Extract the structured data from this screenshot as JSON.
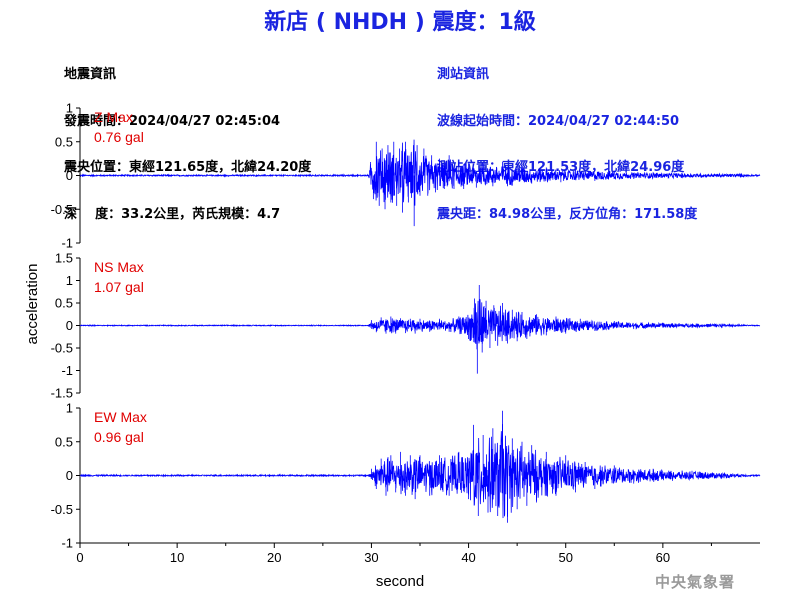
{
  "title": "新店 ( NHDH ) 震度：1級",
  "earthquake_info": {
    "heading": "地震資訊",
    "origin_time": "發震時間：2024/04/27 02:45:04",
    "epicenter": "震央位置：東經121.65度，北緯24.20度",
    "depth_magnitude": "深    度：33.2公里，芮氏規模：4.7"
  },
  "station_info": {
    "heading": "測站資訊",
    "wave_start": "波線起始時間：2024/04/27 02:44:50",
    "location": "測站位置：東經121.53度，北緯24.96度",
    "distance": "震央距：84.98公里，反方位角：171.58度"
  },
  "watermark": "中央氣象署",
  "colors": {
    "title": "#1a24e0",
    "trace": "#0000ff",
    "max_label": "#e00000"
  },
  "chart_data": {
    "type": "line",
    "xlabel": "second",
    "ylabel": "acceleration",
    "xlim": [
      0,
      70
    ],
    "xticks": [
      "0",
      "10",
      "20",
      "30",
      "40",
      "50",
      "60"
    ],
    "panels": [
      {
        "name": "Z",
        "max_label": "Z Max",
        "max_value": "0.76 gal",
        "ylim": [
          -1,
          1
        ],
        "yticks": [
          "1",
          "0.5",
          "0",
          "-0.5",
          "-1"
        ],
        "series": [
          {
            "values": [
              [
                0,
                0
              ],
              [
                29.7,
                0
              ],
              [
                29.9,
                0.2
              ],
              [
                30.2,
                -0.35
              ],
              [
                30.5,
                0.5
              ],
              [
                30.8,
                -0.45
              ],
              [
                31.1,
                0.4
              ],
              [
                31.4,
                -0.5
              ],
              [
                31.7,
                0.45
              ],
              [
                32.0,
                -0.4
              ],
              [
                32.3,
                0.5
              ],
              [
                32.6,
                -0.45
              ],
              [
                32.9,
                0.4
              ],
              [
                33.2,
                -0.55
              ],
              [
                33.5,
                0.5
              ],
              [
                33.8,
                -0.4
              ],
              [
                34.1,
                0.35
              ],
              [
                34.4,
                -0.75
              ],
              [
                34.7,
                0.45
              ],
              [
                35.0,
                -0.3
              ],
              [
                35.4,
                0.4
              ],
              [
                35.8,
                -0.3
              ],
              [
                36.2,
                0.3
              ],
              [
                36.6,
                -0.25
              ],
              [
                37.0,
                0.25
              ],
              [
                37.5,
                -0.2
              ],
              [
                38.0,
                0.3
              ],
              [
                38.5,
                -0.2
              ],
              [
                39.0,
                0.2
              ],
              [
                39.5,
                -0.2
              ],
              [
                40.0,
                0.18
              ],
              [
                40.8,
                -0.18
              ],
              [
                41.5,
                0.18
              ],
              [
                42.5,
                -0.16
              ],
              [
                43.5,
                0.2
              ],
              [
                44.5,
                -0.15
              ],
              [
                45.5,
                0.15
              ],
              [
                46.5,
                -0.12
              ],
              [
                48.0,
                0.12
              ],
              [
                49.5,
                -0.1
              ],
              [
                51.0,
                0.09
              ],
              [
                53.0,
                -0.08
              ],
              [
                55.0,
                0.07
              ],
              [
                57.0,
                -0.05
              ],
              [
                59.0,
                0.05
              ],
              [
                62.0,
                -0.04
              ],
              [
                65.0,
                0.03
              ],
              [
                68.0,
                -0.03
              ],
              [
                70.0,
                0
              ]
            ]
          }
        ]
      },
      {
        "name": "NS",
        "max_label": "NS Max",
        "max_value": "1.07 gal",
        "ylim": [
          -1.5,
          1.5
        ],
        "yticks": [
          "1.5",
          "1",
          "0.5",
          "0",
          "-0.5",
          "-1",
          "-1.5"
        ],
        "series": [
          {
            "values": [
              [
                0,
                0
              ],
              [
                29.7,
                0
              ],
              [
                30.0,
                0.12
              ],
              [
                30.5,
                -0.15
              ],
              [
                31.0,
                0.18
              ],
              [
                31.5,
                -0.18
              ],
              [
                32.0,
                0.2
              ],
              [
                32.5,
                -0.18
              ],
              [
                33.0,
                0.16
              ],
              [
                33.5,
                -0.17
              ],
              [
                34.0,
                0.15
              ],
              [
                34.5,
                -0.18
              ],
              [
                35.0,
                0.15
              ],
              [
                36.0,
                -0.14
              ],
              [
                37.0,
                0.15
              ],
              [
                38.0,
                -0.14
              ],
              [
                39.0,
                0.2
              ],
              [
                40.0,
                -0.3
              ],
              [
                40.6,
                0.6
              ],
              [
                40.9,
                -1.07
              ],
              [
                41.1,
                0.9
              ],
              [
                41.4,
                -0.6
              ],
              [
                41.8,
                0.55
              ],
              [
                42.2,
                -0.5
              ],
              [
                42.6,
                0.45
              ],
              [
                43.0,
                -0.45
              ],
              [
                43.5,
                0.5
              ],
              [
                44.0,
                -0.4
              ],
              [
                44.5,
                0.35
              ],
              [
                45.0,
                -0.35
              ],
              [
                45.5,
                0.3
              ],
              [
                46.0,
                -0.3
              ],
              [
                47.0,
                0.25
              ],
              [
                48.0,
                -0.22
              ],
              [
                49.0,
                0.2
              ],
              [
                50.0,
                -0.18
              ],
              [
                51.5,
                0.15
              ],
              [
                53.0,
                -0.12
              ],
              [
                55.0,
                0.1
              ],
              [
                57.0,
                -0.08
              ],
              [
                60.0,
                0.06
              ],
              [
                63.0,
                -0.05
              ],
              [
                66.0,
                0.04
              ],
              [
                70.0,
                0
              ]
            ]
          }
        ]
      },
      {
        "name": "EW",
        "max_label": "EW Max",
        "max_value": "0.96 gal",
        "ylim": [
          -1,
          1
        ],
        "yticks": [
          "1",
          "0.5",
          "0",
          "-0.5",
          "-1"
        ],
        "series": [
          {
            "values": [
              [
                0,
                0
              ],
              [
                29.7,
                0
              ],
              [
                30.0,
                0.1
              ],
              [
                30.5,
                -0.2
              ],
              [
                31.0,
                0.25
              ],
              [
                31.5,
                -0.3
              ],
              [
                32.0,
                0.3
              ],
              [
                32.5,
                -0.25
              ],
              [
                33.0,
                0.35
              ],
              [
                33.5,
                -0.3
              ],
              [
                34.0,
                0.3
              ],
              [
                34.5,
                -0.35
              ],
              [
                35.0,
                0.3
              ],
              [
                36.0,
                -0.3
              ],
              [
                37.0,
                0.3
              ],
              [
                38.0,
                -0.3
              ],
              [
                39.0,
                0.35
              ],
              [
                40.0,
                -0.35
              ],
              [
                40.5,
                0.75
              ],
              [
                41.0,
                -0.6
              ],
              [
                41.5,
                0.6
              ],
              [
                42.0,
                -0.55
              ],
              [
                42.5,
                0.7
              ],
              [
                43.0,
                -0.6
              ],
              [
                43.5,
                0.96
              ],
              [
                44.0,
                -0.7
              ],
              [
                44.5,
                0.55
              ],
              [
                45.0,
                -0.5
              ],
              [
                45.5,
                0.5
              ],
              [
                46.0,
                -0.45
              ],
              [
                46.5,
                0.45
              ],
              [
                47.0,
                -0.4
              ],
              [
                48.0,
                0.35
              ],
              [
                49.0,
                -0.3
              ],
              [
                50.0,
                0.3
              ],
              [
                51.0,
                -0.25
              ],
              [
                52.0,
                0.2
              ],
              [
                53.0,
                -0.2
              ],
              [
                55.0,
                0.15
              ],
              [
                57.0,
                -0.12
              ],
              [
                59.0,
                0.1
              ],
              [
                61.0,
                -0.08
              ],
              [
                63.0,
                0.07
              ],
              [
                66.0,
                -0.05
              ],
              [
                70.0,
                0
              ]
            ]
          }
        ]
      }
    ]
  }
}
